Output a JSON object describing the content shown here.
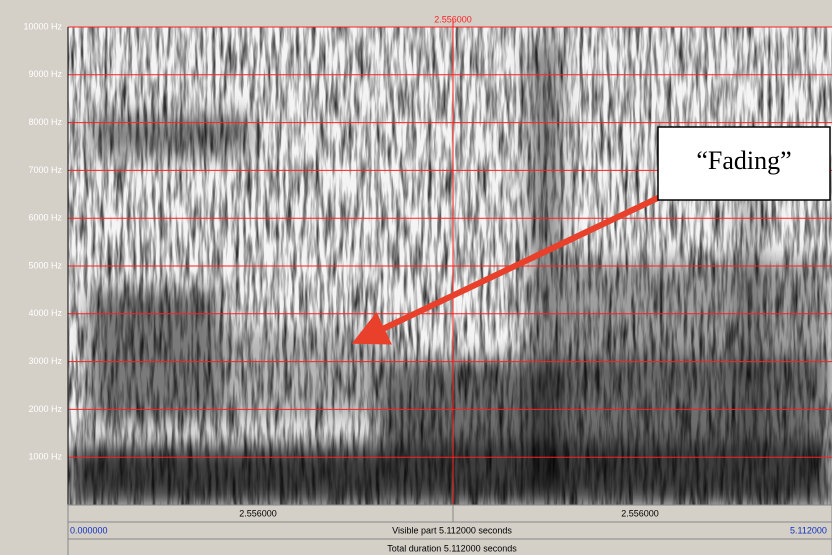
{
  "axis": {
    "labels": [
      "10000 Hz",
      "9000 Hz",
      "8000 Hz",
      "7000 Hz",
      "6000 Hz",
      "5000 Hz",
      "4000 Hz",
      "3000 Hz",
      "2000 Hz",
      "1000 Hz"
    ]
  },
  "cursor": {
    "top_label": "2.556000"
  },
  "bottom": {
    "left_segment": "2.556000",
    "right_segment": "2.556000",
    "start": "0.000000",
    "visible_part": "Visible part 5.112000 seconds",
    "end": "5.112000",
    "total_duration": "Total duration 5.112000 seconds"
  },
  "annotation": {
    "text": "“Fading”"
  }
}
